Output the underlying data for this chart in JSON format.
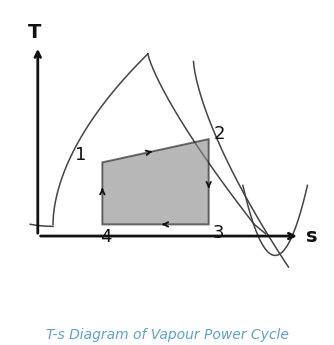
{
  "title": "T-s Diagram of Vapour Power Cycle",
  "title_color": "#5ba3c9",
  "bg_color": "#ffffff",
  "cycle_fill_color": "#888888",
  "cycle_fill_alpha": 0.6,
  "cycle_line_color": "#111111",
  "dome_color": "#444444",
  "axis_color": "#111111",
  "p1": [
    2.8,
    4.2
  ],
  "p2": [
    5.6,
    4.8
  ],
  "p3": [
    5.6,
    2.6
  ],
  "p4": [
    2.8,
    2.6
  ],
  "xlim": [
    0.5,
    8.5
  ],
  "ylim": [
    0.5,
    8.0
  ],
  "label_fontsize": 13,
  "caption_fontsize": 10
}
